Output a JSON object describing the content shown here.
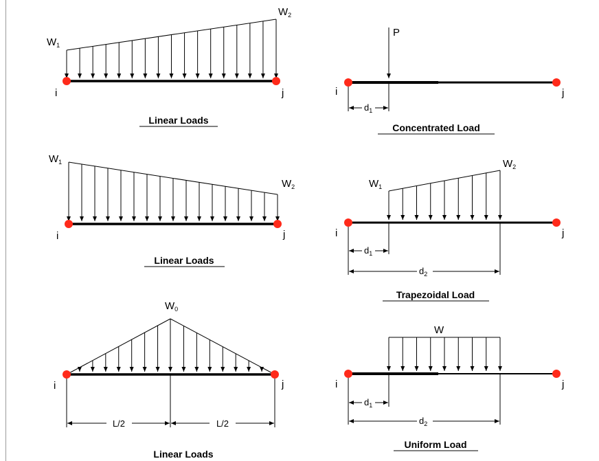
{
  "panels": {
    "linear1": {
      "caption": "Linear Loads",
      "start_label": "W",
      "start_sub": "1",
      "end_label": "W",
      "end_sub": "2",
      "node_i": "i",
      "node_j": "j"
    },
    "linear2": {
      "caption": "Linear Loads",
      "start_label": "W",
      "start_sub": "1",
      "end_label": "W",
      "end_sub": "2",
      "node_i": "i",
      "node_j": "j"
    },
    "linear3": {
      "caption": "Linear Loads",
      "peak_label": "W",
      "peak_sub": "0",
      "half_left": "L/2",
      "half_right": "L/2",
      "node_i": "i",
      "node_j": "j"
    },
    "concentrated": {
      "caption": "Concentrated Load",
      "load_label": "P",
      "d1_label": "d",
      "d1_sub": "1",
      "node_i": "i",
      "node_j": "j"
    },
    "trapezoidal": {
      "caption": "Trapezoidal Load",
      "start_label": "W",
      "start_sub": "1",
      "end_label": "W",
      "end_sub": "2",
      "d1_label": "d",
      "d1_sub": "1",
      "d2_label": "d",
      "d2_sub": "2",
      "node_i": "i",
      "node_j": "j"
    },
    "uniform": {
      "caption": "Uniform Load",
      "load_label": "W",
      "d1_label": "d",
      "d1_sub": "1",
      "d2_label": "d",
      "d2_sub": "2",
      "node_i": "i",
      "node_j": "j"
    }
  },
  "colors": {
    "node": "#ff2a1a",
    "beam": "#000000",
    "line": "#000000"
  }
}
